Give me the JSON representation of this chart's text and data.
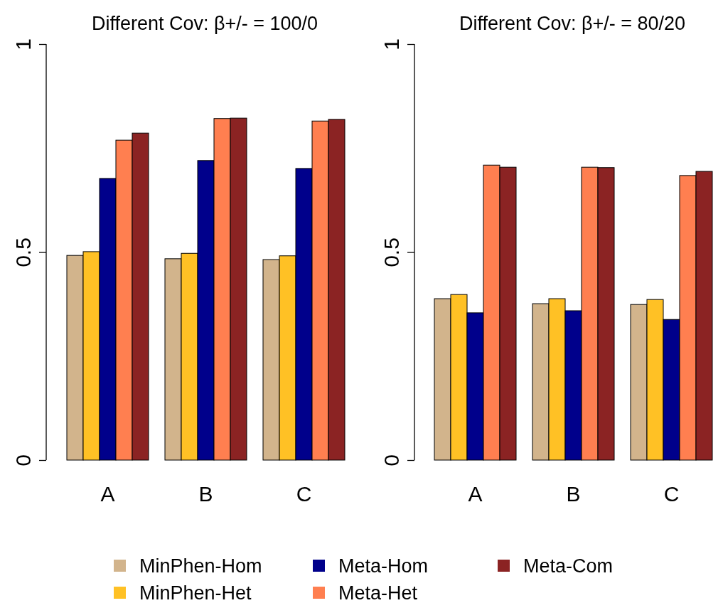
{
  "chart_data": [
    {
      "type": "bar",
      "title": "Different Cov: β+/- = 100/0",
      "categories": [
        "A",
        "B",
        "C"
      ],
      "ylim": [
        0,
        1
      ],
      "yticks": [
        0,
        0.5,
        1
      ],
      "grid": false,
      "legend": "bottom",
      "series": [
        {
          "name": "MinPhen-Hom",
          "color": "#d2b48c",
          "values": [
            0.492,
            0.484,
            0.482
          ]
        },
        {
          "name": "MinPhen-Het",
          "color": "#ffc125",
          "values": [
            0.501,
            0.497,
            0.491
          ]
        },
        {
          "name": "Meta-Hom",
          "color": "#00008b",
          "values": [
            0.677,
            0.72,
            0.701
          ]
        },
        {
          "name": "Meta-Het",
          "color": "#ff7f50",
          "values": [
            0.769,
            0.821,
            0.815
          ]
        },
        {
          "name": "Meta-Com",
          "color": "#8b2323",
          "values": [
            0.786,
            0.822,
            0.819
          ]
        }
      ]
    },
    {
      "type": "bar",
      "title": "Different Cov: β+/- = 80/20",
      "categories": [
        "A",
        "B",
        "C"
      ],
      "ylim": [
        0,
        1
      ],
      "yticks": [
        0,
        0.5,
        1
      ],
      "grid": false,
      "series": [
        {
          "color": "#d2b48c",
          "values": [
            0.388,
            0.376,
            0.374
          ]
        },
        {
          "color": "#ffc125",
          "values": [
            0.398,
            0.388,
            0.386
          ]
        },
        {
          "color": "#00008b",
          "values": [
            0.354,
            0.359,
            0.338
          ]
        },
        {
          "color": "#ff7f50",
          "values": [
            0.709,
            0.704,
            0.684
          ]
        },
        {
          "color": "#8b2323",
          "values": [
            0.704,
            0.703,
            0.694
          ]
        }
      ]
    }
  ]
}
